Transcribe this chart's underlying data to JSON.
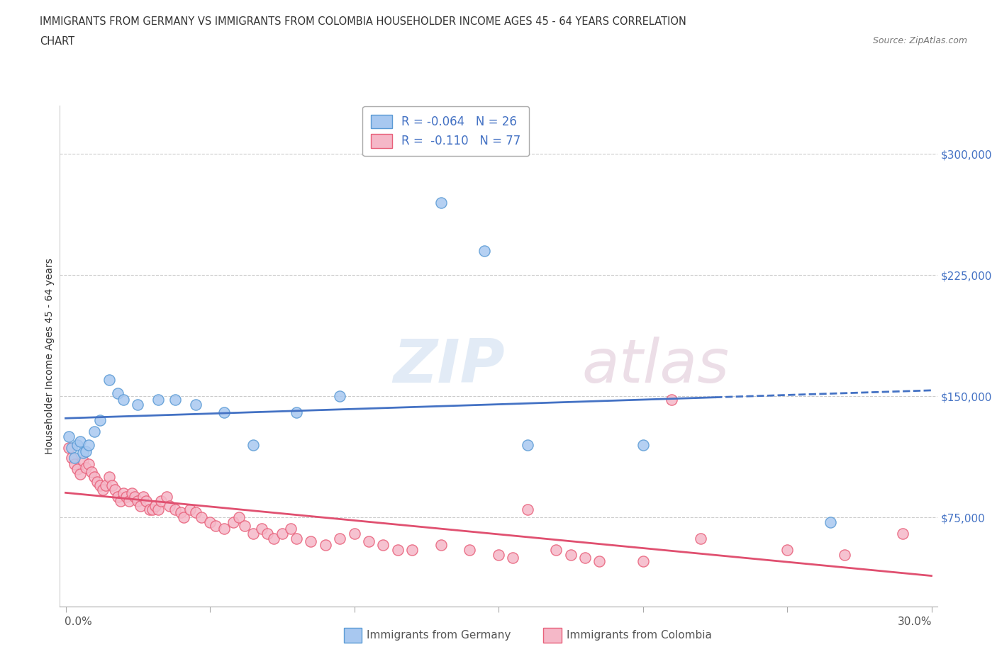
{
  "title_line1": "IMMIGRANTS FROM GERMANY VS IMMIGRANTS FROM COLOMBIA HOUSEHOLDER INCOME AGES 45 - 64 YEARS CORRELATION",
  "title_line2": "CHART",
  "source_text": "Source: ZipAtlas.com",
  "ylabel": "Householder Income Ages 45 - 64 years",
  "watermark_part1": "ZIP",
  "watermark_part2": "atlas",
  "germany_R": -0.064,
  "germany_N": 26,
  "colombia_R": -0.11,
  "colombia_N": 77,
  "germany_color": "#A8C8F0",
  "colombia_color": "#F5B8C8",
  "germany_edge_color": "#5B9BD5",
  "colombia_edge_color": "#E8607A",
  "germany_line_color": "#4472C4",
  "colombia_line_color": "#E05070",
  "xlim": [
    -0.002,
    0.302
  ],
  "ylim": [
    20000,
    330000
  ],
  "ytick_positions": [
    75000,
    150000,
    225000,
    300000
  ],
  "ytick_labels": [
    "$75,000",
    "$150,000",
    "$225,000",
    "$300,000"
  ],
  "germany_scatter_x": [
    0.001,
    0.002,
    0.003,
    0.004,
    0.005,
    0.006,
    0.007,
    0.008,
    0.01,
    0.012,
    0.015,
    0.018,
    0.02,
    0.025,
    0.032,
    0.038,
    0.045,
    0.055,
    0.065,
    0.08,
    0.095,
    0.13,
    0.145,
    0.16,
    0.2,
    0.265
  ],
  "germany_scatter_y": [
    125000,
    118000,
    112000,
    120000,
    122000,
    115000,
    116000,
    120000,
    128000,
    135000,
    160000,
    152000,
    148000,
    145000,
    148000,
    148000,
    145000,
    140000,
    120000,
    140000,
    150000,
    270000,
    240000,
    120000,
    120000,
    72000
  ],
  "colombia_scatter_x": [
    0.001,
    0.002,
    0.003,
    0.004,
    0.005,
    0.006,
    0.007,
    0.008,
    0.009,
    0.01,
    0.011,
    0.012,
    0.013,
    0.014,
    0.015,
    0.016,
    0.017,
    0.018,
    0.019,
    0.02,
    0.021,
    0.022,
    0.023,
    0.024,
    0.025,
    0.026,
    0.027,
    0.028,
    0.029,
    0.03,
    0.031,
    0.032,
    0.033,
    0.035,
    0.036,
    0.038,
    0.04,
    0.041,
    0.043,
    0.045,
    0.047,
    0.05,
    0.052,
    0.055,
    0.058,
    0.06,
    0.062,
    0.065,
    0.068,
    0.07,
    0.072,
    0.075,
    0.078,
    0.08,
    0.085,
    0.09,
    0.095,
    0.1,
    0.105,
    0.11,
    0.115,
    0.12,
    0.13,
    0.14,
    0.15,
    0.155,
    0.16,
    0.17,
    0.175,
    0.18,
    0.185,
    0.2,
    0.21,
    0.22,
    0.25,
    0.27,
    0.29
  ],
  "colombia_scatter_y": [
    118000,
    112000,
    108000,
    105000,
    102000,
    110000,
    106000,
    108000,
    103000,
    100000,
    97000,
    95000,
    92000,
    95000,
    100000,
    95000,
    92000,
    88000,
    85000,
    90000,
    88000,
    85000,
    90000,
    88000,
    85000,
    82000,
    88000,
    85000,
    80000,
    80000,
    82000,
    80000,
    85000,
    88000,
    82000,
    80000,
    78000,
    75000,
    80000,
    78000,
    75000,
    72000,
    70000,
    68000,
    72000,
    75000,
    70000,
    65000,
    68000,
    65000,
    62000,
    65000,
    68000,
    62000,
    60000,
    58000,
    62000,
    65000,
    60000,
    58000,
    55000,
    55000,
    58000,
    55000,
    52000,
    50000,
    80000,
    55000,
    52000,
    50000,
    48000,
    48000,
    148000,
    62000,
    55000,
    52000,
    65000
  ]
}
